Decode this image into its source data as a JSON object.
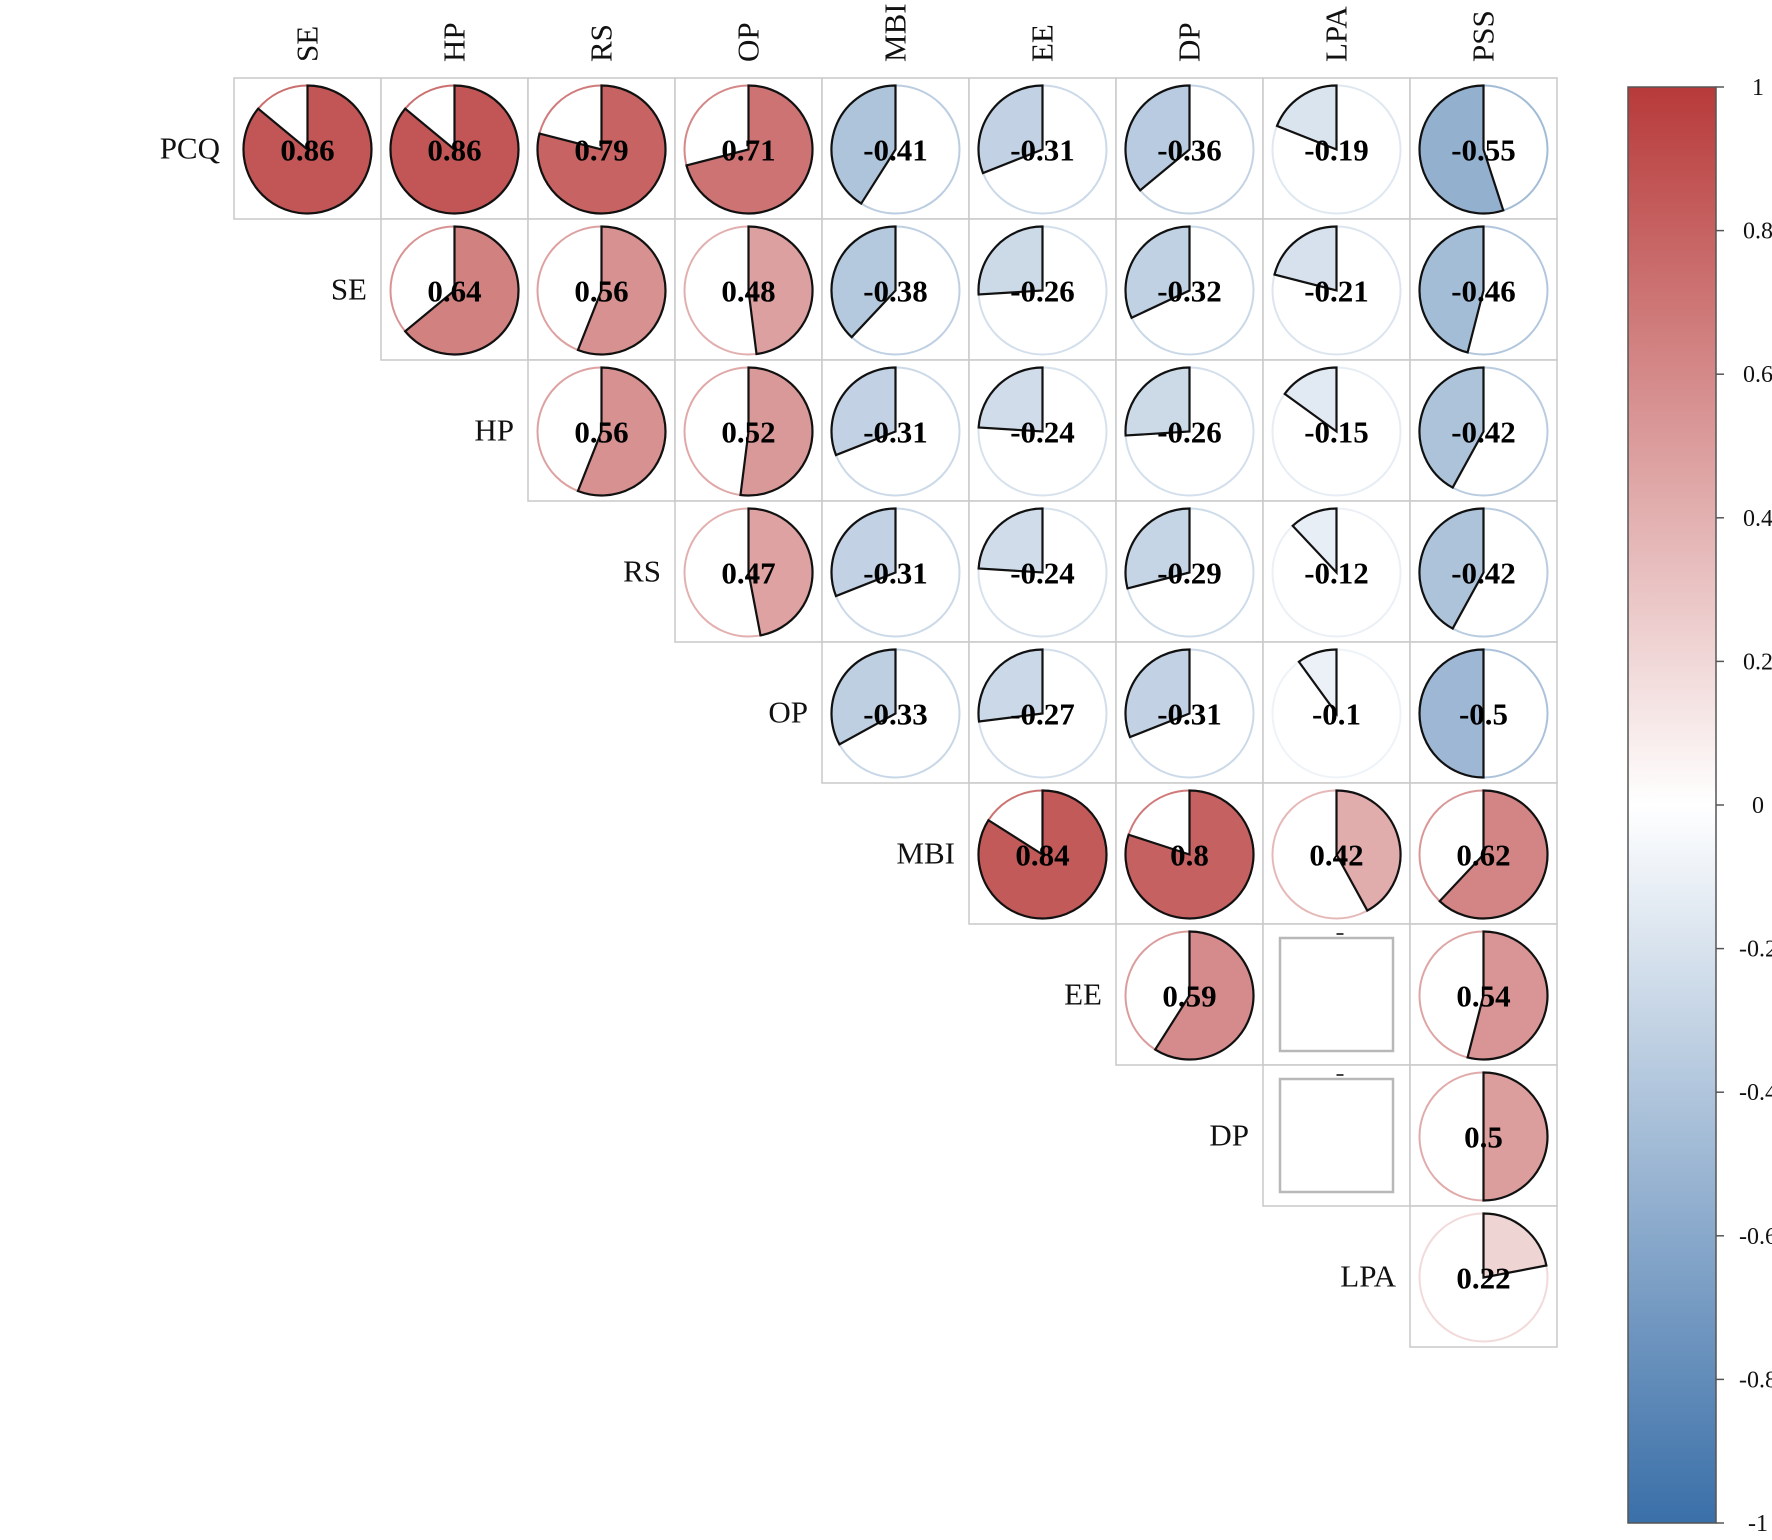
{
  "chart_data": {
    "type": "heatmap",
    "style": "pie-correlogram",
    "title": "",
    "xlabel": "",
    "ylabel": "",
    "col_labels": [
      "SE",
      "HP",
      "RS",
      "OP",
      "MBI",
      "EE",
      "DP",
      "LPA",
      "PSS"
    ],
    "row_labels": [
      "PCQ",
      "SE",
      "HP",
      "RS",
      "OP",
      "MBI",
      "EE",
      "DP",
      "LPA"
    ],
    "cells": [
      {
        "row": "PCQ",
        "col": "SE",
        "value": 0.86,
        "label": "0.86"
      },
      {
        "row": "PCQ",
        "col": "HP",
        "value": 0.86,
        "label": "0.86"
      },
      {
        "row": "PCQ",
        "col": "RS",
        "value": 0.79,
        "label": "0.79"
      },
      {
        "row": "PCQ",
        "col": "OP",
        "value": 0.71,
        "label": "0.71"
      },
      {
        "row": "PCQ",
        "col": "MBI",
        "value": -0.41,
        "label": "-0.41"
      },
      {
        "row": "PCQ",
        "col": "EE",
        "value": -0.31,
        "label": "-0.31"
      },
      {
        "row": "PCQ",
        "col": "DP",
        "value": -0.36,
        "label": "-0.36"
      },
      {
        "row": "PCQ",
        "col": "LPA",
        "value": -0.19,
        "label": "-0.19"
      },
      {
        "row": "PCQ",
        "col": "PSS",
        "value": -0.55,
        "label": "-0.55"
      },
      {
        "row": "SE",
        "col": "HP",
        "value": 0.64,
        "label": "0.64"
      },
      {
        "row": "SE",
        "col": "RS",
        "value": 0.56,
        "label": "0.56"
      },
      {
        "row": "SE",
        "col": "OP",
        "value": 0.48,
        "label": "0.48"
      },
      {
        "row": "SE",
        "col": "MBI",
        "value": -0.38,
        "label": "-0.38"
      },
      {
        "row": "SE",
        "col": "EE",
        "value": -0.26,
        "label": "-0.26"
      },
      {
        "row": "SE",
        "col": "DP",
        "value": -0.32,
        "label": "-0.32"
      },
      {
        "row": "SE",
        "col": "LPA",
        "value": -0.21,
        "label": "-0.21"
      },
      {
        "row": "SE",
        "col": "PSS",
        "value": -0.46,
        "label": "-0.46"
      },
      {
        "row": "HP",
        "col": "RS",
        "value": 0.56,
        "label": "0.56"
      },
      {
        "row": "HP",
        "col": "OP",
        "value": 0.52,
        "label": "0.52"
      },
      {
        "row": "HP",
        "col": "MBI",
        "value": -0.31,
        "label": "-0.31"
      },
      {
        "row": "HP",
        "col": "EE",
        "value": -0.24,
        "label": "-0.24"
      },
      {
        "row": "HP",
        "col": "DP",
        "value": -0.26,
        "label": "-0.26"
      },
      {
        "row": "HP",
        "col": "LPA",
        "value": -0.15,
        "label": "-0.15"
      },
      {
        "row": "HP",
        "col": "PSS",
        "value": -0.42,
        "label": "-0.42"
      },
      {
        "row": "RS",
        "col": "OP",
        "value": 0.47,
        "label": "0.47"
      },
      {
        "row": "RS",
        "col": "MBI",
        "value": -0.31,
        "label": "-0.31"
      },
      {
        "row": "RS",
        "col": "EE",
        "value": -0.24,
        "label": "-0.24"
      },
      {
        "row": "RS",
        "col": "DP",
        "value": -0.29,
        "label": "-0.29"
      },
      {
        "row": "RS",
        "col": "LPA",
        "value": -0.12,
        "label": "-0.12"
      },
      {
        "row": "RS",
        "col": "PSS",
        "value": -0.42,
        "label": "-0.42"
      },
      {
        "row": "OP",
        "col": "MBI",
        "value": -0.33,
        "label": "-0.33"
      },
      {
        "row": "OP",
        "col": "EE",
        "value": -0.27,
        "label": "-0.27"
      },
      {
        "row": "OP",
        "col": "DP",
        "value": -0.31,
        "label": "-0.31"
      },
      {
        "row": "OP",
        "col": "LPA",
        "value": -0.1,
        "label": "-0.1"
      },
      {
        "row": "OP",
        "col": "PSS",
        "value": -0.5,
        "label": "-0.5"
      },
      {
        "row": "MBI",
        "col": "EE",
        "value": 0.84,
        "label": "0.84"
      },
      {
        "row": "MBI",
        "col": "DP",
        "value": 0.8,
        "label": "0.8"
      },
      {
        "row": "MBI",
        "col": "LPA",
        "value": 0.42,
        "label": "0.42"
      },
      {
        "row": "MBI",
        "col": "PSS",
        "value": 0.62,
        "label": "0.62"
      },
      {
        "row": "EE",
        "col": "DP",
        "value": 0.59,
        "label": "0.59"
      },
      {
        "row": "EE",
        "col": "LPA",
        "value": null,
        "label": ""
      },
      {
        "row": "EE",
        "col": "PSS",
        "value": 0.54,
        "label": "0.54"
      },
      {
        "row": "DP",
        "col": "LPA",
        "value": null,
        "label": ""
      },
      {
        "row": "DP",
        "col": "PSS",
        "value": 0.5,
        "label": "0.5"
      },
      {
        "row": "LPA",
        "col": "PSS",
        "value": 0.22,
        "label": "0.22"
      }
    ],
    "colorbar": {
      "range": [
        -1,
        1
      ],
      "ticks": [
        "1",
        "0.8",
        "0.6",
        "0.4",
        "0.2",
        "0",
        "-0.2",
        "-0.4",
        "-0.6",
        "-0.8",
        "-1"
      ],
      "colors": {
        "negative": "#3a6fa8",
        "neutral": "#ffffff",
        "positive": "#b83a3a"
      }
    },
    "grid": true,
    "legend": "colorbar-right"
  }
}
